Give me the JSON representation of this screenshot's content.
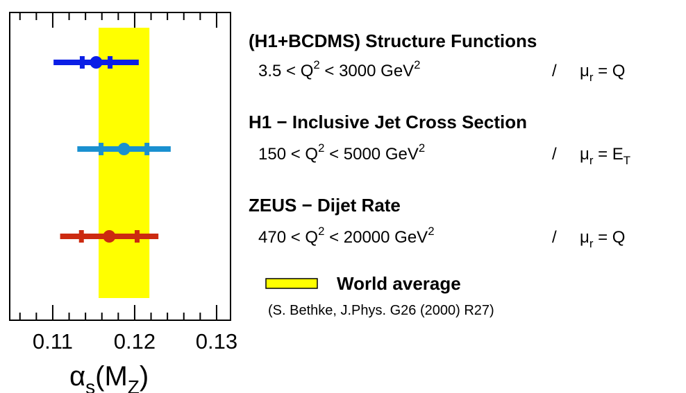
{
  "chart_data": {
    "type": "errorbar",
    "xlim": [
      0.10475,
      0.1317
    ],
    "xticks": [
      {
        "value": 0.11,
        "label": "0.11"
      },
      {
        "value": 0.12,
        "label": "0.12"
      },
      {
        "value": 0.13,
        "label": "0.13"
      }
    ],
    "xminorticks": [
      0.106,
      0.108,
      0.112,
      0.114,
      0.116,
      0.118,
      0.122,
      0.124,
      0.126,
      0.128
    ],
    "xlabel": [
      {
        "text": "α"
      },
      {
        "text": "s",
        "shift": "sub"
      },
      {
        "text": "(M"
      },
      {
        "text": "Z",
        "shift": "sub"
      },
      {
        "text": ")"
      }
    ],
    "series": [
      {
        "name": "(H1+BCDMS) Structure Functions",
        "color": "#0a1ee6",
        "value": 0.1153,
        "stat_error": 0.0017,
        "total_error": 0.0052,
        "range": [
          {
            "text": "3.5 < Q"
          },
          {
            "text": "2",
            "shift": "sup"
          },
          {
            "text": " < 3000 GeV"
          },
          {
            "text": "2",
            "shift": "sup"
          }
        ],
        "separator": "/",
        "scale": [
          {
            "text": "μ"
          },
          {
            "text": "r",
            "shift": "sub"
          },
          {
            "text": " = Q"
          }
        ]
      },
      {
        "name": "H1  −  Inclusive Jet Cross Section",
        "color": "#1a90d0",
        "value": 0.1187,
        "stat_error": 0.0028,
        "total_error": 0.0057,
        "range": [
          {
            "text": "150 < Q"
          },
          {
            "text": "2",
            "shift": "sup"
          },
          {
            "text": " < 5000 GeV"
          },
          {
            "text": "2",
            "shift": "sup"
          }
        ],
        "separator": "/",
        "scale": [
          {
            "text": "μ"
          },
          {
            "text": "r",
            "shift": "sub"
          },
          {
            "text": " = E"
          },
          {
            "text": "T",
            "shift": "sub"
          }
        ]
      },
      {
        "name": "ZEUS  −  Dijet Rate",
        "color": "#cc2a10",
        "value": 0.1169,
        "stat_error": 0.0034,
        "total_error": 0.006,
        "range": [
          {
            "text": "470 < Q"
          },
          {
            "text": "2",
            "shift": "sup"
          },
          {
            "text": " < 20000 GeV"
          },
          {
            "text": "2",
            "shift": "sup"
          }
        ],
        "separator": "/",
        "scale": [
          {
            "text": "μ"
          },
          {
            "text": "r",
            "shift": "sub"
          },
          {
            "text": " = Q"
          }
        ]
      }
    ],
    "band": {
      "name": "World average",
      "reference": "(S. Bethke, J.Phys. G26 (2000) R27)",
      "color": "#ffff00",
      "value": 0.1187,
      "error": 0.0031
    }
  }
}
